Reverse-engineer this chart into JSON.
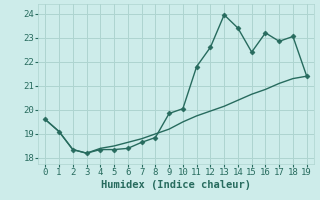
{
  "x": [
    0,
    1,
    2,
    3,
    4,
    5,
    6,
    7,
    8,
    9,
    10,
    11,
    12,
    13,
    14,
    15,
    16,
    17,
    18,
    19
  ],
  "line1_y": [
    19.6,
    19.1,
    18.35,
    18.2,
    18.35,
    18.35,
    18.4,
    18.65,
    18.85,
    19.85,
    20.05,
    21.8,
    22.6,
    23.95,
    23.4,
    22.4,
    23.2,
    22.85,
    23.05,
    21.4
  ],
  "line2_y": [
    19.6,
    19.1,
    18.35,
    18.2,
    18.4,
    18.5,
    18.65,
    18.8,
    19.0,
    19.2,
    19.5,
    19.75,
    19.95,
    20.15,
    20.4,
    20.65,
    20.85,
    21.1,
    21.3,
    21.4
  ],
  "line_color": "#276b5e",
  "bg_color": "#cdecea",
  "grid_color": "#aed4d0",
  "xlabel": "Humidex (Indice chaleur)",
  "ylabel_ticks": [
    18,
    19,
    20,
    21,
    22,
    23,
    24
  ],
  "xlim": [
    -0.5,
    19.5
  ],
  "ylim": [
    17.75,
    24.4
  ],
  "marker": "D",
  "marker_size": 2.5,
  "line_width": 1.0,
  "label_fontsize": 7.5
}
